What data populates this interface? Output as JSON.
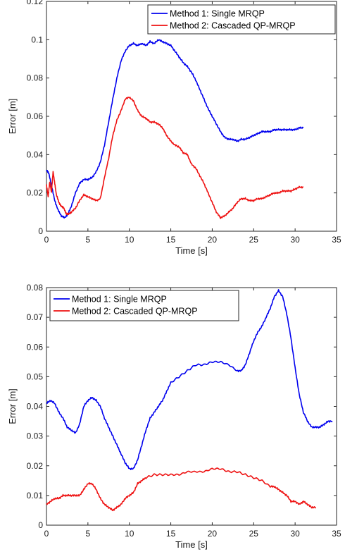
{
  "colors": {
    "method1": "#0000ee",
    "method2": "#ee1111",
    "axis": "#262626"
  },
  "chart_data": [
    {
      "type": "line",
      "title": "",
      "xlabel": "Time [s]",
      "ylabel": "Error [m]",
      "xlim": [
        0,
        35
      ],
      "ylim": [
        0,
        0.12
      ],
      "xticks": [
        "0",
        "5",
        "10",
        "15",
        "20",
        "25",
        "30",
        "35"
      ],
      "yticks": [
        "0",
        "0.02",
        "0.04",
        "0.06",
        "0.08",
        "0.1",
        "0.12"
      ],
      "grid": false,
      "legend_position": "top-right",
      "series": [
        {
          "name": "Method 1: Single MRQP",
          "color": "#0000ee",
          "x": [
            0,
            0.3,
            0.6,
            1.0,
            1.4,
            1.8,
            2.2,
            2.6,
            3.0,
            3.5,
            4.0,
            4.5,
            5.0,
            5.5,
            6.0,
            6.5,
            7.0,
            7.5,
            8.0,
            8.5,
            9.0,
            9.5,
            10.0,
            10.5,
            11.0,
            11.5,
            12.0,
            12.5,
            13.0,
            13.5,
            14.0,
            14.5,
            15.0,
            15.5,
            16.0,
            16.5,
            17.0,
            17.5,
            18.0,
            18.5,
            19.0,
            19.5,
            20.0,
            20.5,
            21.0,
            21.5,
            22.0,
            22.5,
            23.0,
            23.5,
            24.0,
            24.5,
            25.0,
            25.5,
            26.0,
            26.5,
            27.0,
            27.5,
            28.0,
            28.5,
            29.0,
            29.5,
            30.0,
            30.5,
            31.0
          ],
          "values": [
            0.032,
            0.03,
            0.024,
            0.016,
            0.011,
            0.008,
            0.007,
            0.009,
            0.013,
            0.02,
            0.025,
            0.027,
            0.027,
            0.028,
            0.031,
            0.036,
            0.045,
            0.057,
            0.069,
            0.08,
            0.089,
            0.094,
            0.097,
            0.098,
            0.097,
            0.098,
            0.097,
            0.099,
            0.098,
            0.1,
            0.099,
            0.098,
            0.097,
            0.094,
            0.091,
            0.088,
            0.086,
            0.083,
            0.079,
            0.074,
            0.069,
            0.064,
            0.06,
            0.056,
            0.052,
            0.049,
            0.048,
            0.048,
            0.047,
            0.048,
            0.048,
            0.049,
            0.05,
            0.051,
            0.052,
            0.052,
            0.052,
            0.053,
            0.053,
            0.053,
            0.053,
            0.053,
            0.053,
            0.054,
            0.054
          ]
        },
        {
          "name": "Method 2: Cascaded QP-MRQP",
          "color": "#ee1111",
          "x": [
            0,
            0.2,
            0.4,
            0.6,
            0.8,
            1.0,
            1.2,
            1.5,
            1.8,
            2.1,
            2.4,
            2.7,
            3.0,
            3.5,
            4.0,
            4.5,
            5.0,
            5.5,
            6.0,
            6.5,
            7.0,
            7.5,
            8.0,
            8.5,
            9.0,
            9.5,
            10.0,
            10.5,
            11.0,
            11.5,
            12.0,
            12.5,
            13.0,
            13.5,
            14.0,
            14.5,
            15.0,
            15.5,
            16.0,
            16.5,
            17.0,
            17.5,
            18.0,
            18.5,
            19.0,
            19.5,
            20.0,
            20.5,
            21.0,
            21.5,
            22.0,
            22.5,
            23.0,
            23.5,
            24.0,
            24.5,
            25.0,
            25.5,
            26.0,
            26.5,
            27.0,
            27.5,
            28.0,
            28.5,
            29.0,
            29.5,
            30.0,
            30.5,
            31.0
          ],
          "values": [
            0.024,
            0.018,
            0.026,
            0.02,
            0.031,
            0.025,
            0.019,
            0.015,
            0.013,
            0.012,
            0.009,
            0.009,
            0.01,
            0.012,
            0.016,
            0.019,
            0.018,
            0.017,
            0.016,
            0.017,
            0.028,
            0.038,
            0.05,
            0.058,
            0.063,
            0.069,
            0.07,
            0.068,
            0.063,
            0.06,
            0.059,
            0.057,
            0.057,
            0.056,
            0.054,
            0.05,
            0.047,
            0.045,
            0.044,
            0.041,
            0.04,
            0.035,
            0.033,
            0.029,
            0.025,
            0.02,
            0.015,
            0.01,
            0.007,
            0.008,
            0.01,
            0.012,
            0.015,
            0.017,
            0.017,
            0.016,
            0.016,
            0.017,
            0.017,
            0.018,
            0.019,
            0.02,
            0.02,
            0.021,
            0.021,
            0.021,
            0.022,
            0.023,
            0.023
          ]
        }
      ]
    },
    {
      "type": "line",
      "title": "",
      "xlabel": "Time [s]",
      "ylabel": "Error [m]",
      "xlim": [
        0,
        35
      ],
      "ylim": [
        0,
        0.08
      ],
      "xticks": [
        "0",
        "5",
        "10",
        "15",
        "20",
        "25",
        "30",
        "35"
      ],
      "yticks": [
        "0",
        "0.01",
        "0.02",
        "0.03",
        "0.04",
        "0.05",
        "0.06",
        "0.07",
        "0.08"
      ],
      "grid": false,
      "legend_position": "top-left",
      "series": [
        {
          "name": "Method 1: Single MRQP",
          "color": "#0000ee",
          "x": [
            0,
            0.5,
            1.0,
            1.5,
            2.0,
            2.5,
            3.0,
            3.5,
            4.0,
            4.5,
            5.0,
            5.5,
            6.0,
            6.5,
            7.0,
            7.5,
            8.0,
            8.5,
            9.0,
            9.5,
            10.0,
            10.5,
            11.0,
            11.5,
            12.0,
            12.5,
            13.0,
            13.5,
            14.0,
            14.5,
            15.0,
            16.0,
            17.0,
            18.0,
            19.0,
            20.0,
            21.0,
            22.0,
            23.0,
            23.5,
            24.0,
            24.5,
            25.0,
            25.5,
            26.0,
            26.5,
            27.0,
            27.5,
            28.0,
            28.5,
            29.0,
            29.5,
            30.0,
            30.5,
            31.0,
            31.5,
            32.0,
            32.5,
            33.0,
            33.5,
            34.0,
            34.5
          ],
          "values": [
            0.041,
            0.042,
            0.041,
            0.038,
            0.036,
            0.033,
            0.032,
            0.031,
            0.034,
            0.04,
            0.042,
            0.043,
            0.042,
            0.04,
            0.036,
            0.033,
            0.03,
            0.027,
            0.024,
            0.021,
            0.019,
            0.019,
            0.022,
            0.027,
            0.032,
            0.036,
            0.038,
            0.04,
            0.042,
            0.045,
            0.048,
            0.05,
            0.052,
            0.054,
            0.054,
            0.055,
            0.055,
            0.054,
            0.052,
            0.052,
            0.054,
            0.058,
            0.062,
            0.065,
            0.067,
            0.07,
            0.073,
            0.077,
            0.079,
            0.077,
            0.071,
            0.063,
            0.053,
            0.044,
            0.038,
            0.035,
            0.033,
            0.033,
            0.033,
            0.034,
            0.035,
            0.035
          ]
        },
        {
          "name": "Method 2: Cascaded QP-MRQP",
          "color": "#ee1111",
          "x": [
            0,
            0.5,
            1.0,
            1.5,
            2.0,
            2.5,
            3.0,
            3.5,
            4.0,
            4.5,
            5.0,
            5.5,
            6.0,
            6.5,
            7.0,
            7.5,
            8.0,
            8.5,
            9.0,
            9.5,
            10.0,
            10.5,
            11.0,
            11.5,
            12.0,
            13.0,
            14.0,
            15.0,
            16.0,
            17.0,
            18.0,
            19.0,
            20.0,
            21.0,
            22.0,
            23.0,
            24.0,
            25.0,
            26.0,
            27.0,
            27.5,
            28.0,
            28.5,
            29.0,
            29.5,
            30.0,
            30.5,
            31.0,
            31.5,
            32.0,
            32.5
          ],
          "values": [
            0.007,
            0.008,
            0.009,
            0.009,
            0.01,
            0.01,
            0.01,
            0.01,
            0.01,
            0.012,
            0.014,
            0.014,
            0.012,
            0.009,
            0.007,
            0.006,
            0.005,
            0.006,
            0.007,
            0.009,
            0.01,
            0.011,
            0.014,
            0.015,
            0.016,
            0.017,
            0.017,
            0.017,
            0.017,
            0.018,
            0.018,
            0.018,
            0.019,
            0.019,
            0.018,
            0.018,
            0.017,
            0.016,
            0.015,
            0.013,
            0.013,
            0.012,
            0.011,
            0.01,
            0.008,
            0.008,
            0.007,
            0.008,
            0.007,
            0.006,
            0.006
          ]
        }
      ]
    }
  ]
}
